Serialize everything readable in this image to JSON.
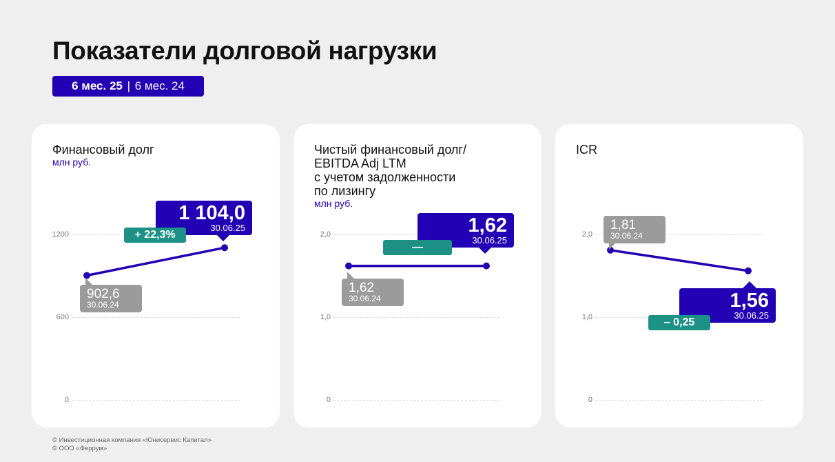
{
  "page": {
    "title": "Показатели долговой нагрузки",
    "period": {
      "current": "6 мес. 25",
      "separator": "|",
      "previous": "6 мес. 24"
    }
  },
  "colors": {
    "accent": "#2200b3",
    "previous": "#9b9b9b",
    "change": "#1e9187"
  },
  "cards": [
    {
      "title": "Финансовый долг",
      "unit": "млн руб.",
      "current_value_label": "1 104,0",
      "current_date": "30.06.25",
      "previous_value_label": "902,6",
      "previous_date": "30.06.24",
      "change": "+ 22,3%"
    },
    {
      "title": "Чистый финансовый долг/\nEBITDA Adj LTM\nс учетом задолженности\nпо лизингу",
      "unit": "млн руб.",
      "current_value_label": "1,62",
      "current_date": "30.06.25",
      "previous_value_label": "1,62",
      "previous_date": "30.06.24",
      "change": "—"
    },
    {
      "title": "ICR",
      "unit": "",
      "current_value_label": "1,56",
      "current_date": "30.06.25",
      "previous_value_label": "1,81",
      "previous_date": "30.06.24",
      "change": "– 0,25"
    }
  ],
  "chart_data": [
    {
      "type": "line",
      "title": "Финансовый долг",
      "ylabel": "млн руб.",
      "x": [
        "30.06.24",
        "30.06.25"
      ],
      "values": [
        902.6,
        1104.0
      ],
      "yticks": [
        "0",
        "600",
        "1200"
      ],
      "ylim": [
        0,
        1200
      ],
      "grid": true
    },
    {
      "type": "line",
      "title": "Чистый финансовый долг/ EBITDA Adj LTM с учетом задолженности по лизингу",
      "ylabel": "млн руб.",
      "x": [
        "30.06.24",
        "30.06.25"
      ],
      "values": [
        1.62,
        1.62
      ],
      "yticks": [
        "0",
        "1,0",
        "2,0"
      ],
      "ylim": [
        0,
        2.0
      ],
      "grid": true
    },
    {
      "type": "line",
      "title": "ICR",
      "ylabel": "",
      "x": [
        "30.06.24",
        "30.06.25"
      ],
      "values": [
        1.81,
        1.56
      ],
      "yticks": [
        "0",
        "1,0",
        "2,0"
      ],
      "ylim": [
        0,
        2.0
      ],
      "grid": true
    }
  ],
  "footer": {
    "line1": "© Инвестиционная компания «Юнисервис Капитал»",
    "line2": "© ООО «Феррум»"
  }
}
